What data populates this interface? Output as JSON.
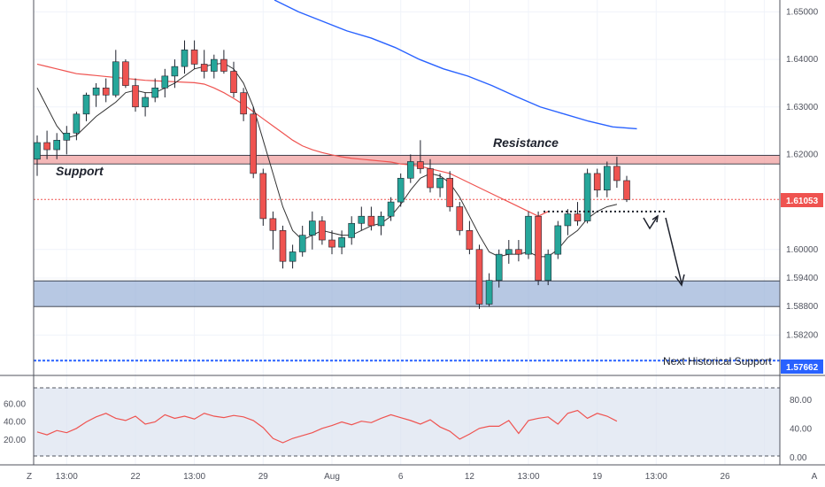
{
  "chart_data": [
    {
      "type": "candlestick",
      "yaxis": {
        "ticks": [
          "1.65000",
          "1.64000",
          "1.63000",
          "1.62000",
          "1.60000",
          "1.59400",
          "1.58800",
          "1.58200"
        ],
        "range": [
          1.5735,
          1.6525
        ]
      },
      "xaxis": {
        "ticks": [
          {
            "label": "Z",
            "x": -1
          },
          {
            "label": "13:00",
            "x": 3
          },
          {
            "label": "22",
            "x": 10
          },
          {
            "label": "13:00",
            "x": 16
          },
          {
            "label": "29",
            "x": 23
          },
          {
            "label": "Aug",
            "x": 30
          },
          {
            "label": "6",
            "x": 37
          },
          {
            "label": "12",
            "x": 44
          },
          {
            "label": "13:00",
            "x": 50
          },
          {
            "label": "19",
            "x": 57
          },
          {
            "label": "13:00",
            "x": 63
          },
          {
            "label": "26",
            "x": 70
          },
          {
            "label": "A",
            "x": 74
          }
        ]
      },
      "candles": [
        [
          1.619,
          1.624,
          1.6155,
          1.6225
        ],
        [
          1.6225,
          1.625,
          1.619,
          1.621
        ],
        [
          1.621,
          1.6245,
          1.619,
          1.623
        ],
        [
          1.623,
          1.626,
          1.62,
          1.6245
        ],
        [
          1.6245,
          1.629,
          1.623,
          1.6285
        ],
        [
          1.6285,
          1.633,
          1.627,
          1.6325
        ],
        [
          1.6325,
          1.635,
          1.63,
          1.634
        ],
        [
          1.634,
          1.636,
          1.631,
          1.6325
        ],
        [
          1.6325,
          1.642,
          1.632,
          1.6395
        ],
        [
          1.6395,
          1.64,
          1.634,
          1.6345
        ],
        [
          1.6345,
          1.636,
          1.629,
          1.63
        ],
        [
          1.63,
          1.633,
          1.628,
          1.632
        ],
        [
          1.632,
          1.636,
          1.631,
          1.634
        ],
        [
          1.634,
          1.638,
          1.632,
          1.6365
        ],
        [
          1.6365,
          1.64,
          1.634,
          1.6385
        ],
        [
          1.6385,
          1.644,
          1.637,
          1.642
        ],
        [
          1.642,
          1.644,
          1.638,
          1.639
        ],
        [
          1.639,
          1.642,
          1.636,
          1.6375
        ],
        [
          1.6375,
          1.641,
          1.636,
          1.64
        ],
        [
          1.64,
          1.642,
          1.637,
          1.6375
        ],
        [
          1.6375,
          1.6395,
          1.632,
          1.633
        ],
        [
          1.633,
          1.634,
          1.627,
          1.6285
        ],
        [
          1.6285,
          1.63,
          1.615,
          1.616
        ],
        [
          1.616,
          1.617,
          1.605,
          1.6065
        ],
        [
          1.6065,
          1.608,
          1.6,
          1.604
        ],
        [
          1.604,
          1.605,
          1.596,
          1.5975
        ],
        [
          1.5975,
          1.601,
          1.596,
          1.5995
        ],
        [
          1.5995,
          1.605,
          1.5985,
          1.603
        ],
        [
          1.603,
          1.608,
          1.6,
          1.606
        ],
        [
          1.606,
          1.607,
          1.601,
          1.602
        ],
        [
          1.602,
          1.604,
          1.599,
          1.6005
        ],
        [
          1.6005,
          1.604,
          1.599,
          1.6025
        ],
        [
          1.6025,
          1.607,
          1.601,
          1.6055
        ],
        [
          1.6055,
          1.609,
          1.604,
          1.607
        ],
        [
          1.607,
          1.609,
          1.604,
          1.605
        ],
        [
          1.605,
          1.608,
          1.603,
          1.607
        ],
        [
          1.607,
          1.611,
          1.606,
          1.61
        ],
        [
          1.61,
          1.616,
          1.609,
          1.615
        ],
        [
          1.615,
          1.62,
          1.614,
          1.6185
        ],
        [
          1.6185,
          1.623,
          1.616,
          1.617
        ],
        [
          1.617,
          1.619,
          1.612,
          1.613
        ],
        [
          1.613,
          1.616,
          1.611,
          1.615
        ],
        [
          1.615,
          1.6165,
          1.608,
          1.609
        ],
        [
          1.609,
          1.61,
          1.603,
          1.604
        ],
        [
          1.604,
          1.606,
          1.599,
          1.6
        ],
        [
          1.6,
          1.601,
          1.5875,
          1.5885
        ],
        [
          1.5885,
          1.595,
          1.588,
          1.5935
        ],
        [
          1.5935,
          1.6,
          1.592,
          1.599
        ],
        [
          1.599,
          1.602,
          1.597,
          1.6
        ],
        [
          1.6,
          1.602,
          1.5975,
          1.599
        ],
        [
          1.599,
          1.608,
          1.598,
          1.607
        ],
        [
          1.607,
          1.608,
          1.5925,
          1.5935
        ],
        [
          1.5935,
          1.6,
          1.5925,
          1.599
        ],
        [
          1.599,
          1.606,
          1.598,
          1.605
        ],
        [
          1.605,
          1.6085,
          1.603,
          1.6075
        ],
        [
          1.6075,
          1.61,
          1.605,
          1.606
        ],
        [
          1.606,
          1.617,
          1.6055,
          1.616
        ],
        [
          1.616,
          1.617,
          1.611,
          1.6125
        ],
        [
          1.6125,
          1.6185,
          1.611,
          1.6175
        ],
        [
          1.6175,
          1.6195,
          1.613,
          1.6145
        ],
        [
          1.6145,
          1.6155,
          1.61,
          1.6105
        ]
      ],
      "sma_fast": [
        1.634,
        1.63,
        1.626,
        1.6235,
        1.624,
        1.626,
        1.628,
        1.6295,
        1.631,
        1.633,
        1.6335,
        1.633,
        1.633,
        1.634,
        1.635,
        1.6365,
        1.638,
        1.6385,
        1.639,
        1.6392,
        1.638,
        1.635,
        1.63,
        1.623,
        1.616,
        1.609,
        1.604,
        1.602,
        1.603,
        1.604,
        1.6035,
        1.603,
        1.603,
        1.604,
        1.605,
        1.6055,
        1.607,
        1.6095,
        1.6125,
        1.615,
        1.616,
        1.6155,
        1.614,
        1.611,
        1.607,
        1.603,
        1.5995,
        1.5985,
        1.599,
        1.599,
        1.5995,
        1.5985,
        1.5985,
        1.6,
        1.6025,
        1.604,
        1.6065,
        1.608,
        1.609,
        1.6095
      ],
      "sma_mid": [
        1.639,
        1.6385,
        1.638,
        1.6375,
        1.637,
        1.6368,
        1.6366,
        1.6364,
        1.6362,
        1.636,
        1.6358,
        1.6356,
        1.6355,
        1.6354,
        1.6353,
        1.6352,
        1.6351,
        1.6348,
        1.634,
        1.633,
        1.6318,
        1.6305,
        1.629,
        1.6275,
        1.626,
        1.6245,
        1.623,
        1.6218,
        1.621,
        1.6204,
        1.6199,
        1.6195,
        1.6192,
        1.619,
        1.6188,
        1.6186,
        1.6184,
        1.618,
        1.6178,
        1.6175,
        1.617,
        1.6165,
        1.616,
        1.615,
        1.614,
        1.613,
        1.612,
        1.611,
        1.61,
        1.609,
        1.608,
        1.607,
        1.608
      ],
      "sma_slow": [
        1.6525,
        1.65,
        1.648,
        1.646,
        1.6445,
        1.6425,
        1.64,
        1.638,
        1.6365,
        1.6345,
        1.6322,
        1.63,
        1.6285,
        1.627,
        1.6258,
        1.6254
      ],
      "rsi": [
        36,
        32,
        38,
        35,
        41,
        50,
        57,
        62,
        55,
        52,
        58,
        47,
        50,
        60,
        55,
        58,
        54,
        62,
        58,
        56,
        59,
        57,
        52,
        42,
        27,
        21,
        27,
        31,
        35,
        41,
        45,
        50,
        46,
        51,
        49,
        55,
        60,
        56,
        52,
        47,
        53,
        43,
        37,
        26,
        33,
        41,
        44,
        44,
        52,
        34,
        52,
        55,
        57,
        47,
        62,
        66,
        55,
        62,
        58,
        51
      ]
    }
  ],
  "resistance_label": "Resistance",
  "support_label": "Support",
  "next_support_label": "Next Historical Support",
  "levels": {
    "resistance_top": 1.6198,
    "resistance_bottom": 1.618,
    "current": 1.61053,
    "support_top": 1.5934,
    "support_bottom": 1.588,
    "next_support": 1.57662,
    "dotted_level": 1.608
  },
  "price_tag": "1.61053",
  "next_support_tag": "1.57662",
  "rsi_left_ticks": [
    "60.00",
    "40.00",
    "20.00"
  ],
  "rsi_right_ticks": [
    "80.00",
    "40.00",
    "0.00"
  ],
  "colors": {
    "bull": "#26a69a",
    "bear": "#ef5350",
    "sma_fast": "#333333",
    "sma_mid": "#ef5350",
    "sma_slow": "#2962ff",
    "resistance_zone": "#ef9a9a",
    "support_zone": "#9fb6d9",
    "rsi_line": "#ef5350"
  }
}
